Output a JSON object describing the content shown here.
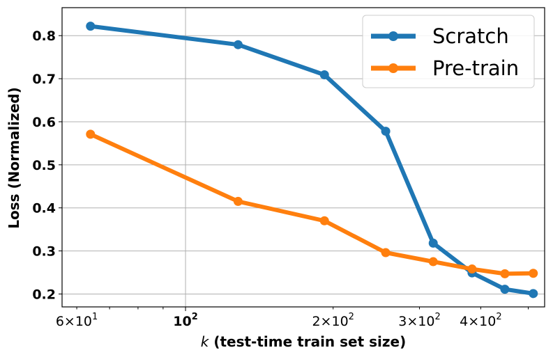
{
  "chart_data": {
    "type": "line",
    "xscale": "log",
    "xlabel_italic": "k",
    "xlabel_rest": "(test-time train set size)",
    "ylabel": "Loss (Normalized)",
    "xlim": [
      56,
      540
    ],
    "ylim": [
      0.17,
      0.865
    ],
    "grid": true,
    "legend_position": "top-right",
    "yticks": [
      "0.2",
      "0.3",
      "0.4",
      "0.5",
      "0.6",
      "0.7",
      "0.8"
    ],
    "xtick_major": {
      "value": 100,
      "base": "10",
      "exp": "2"
    },
    "xtick_minor": [
      {
        "value": 60,
        "mantissa": "6",
        "base": "10",
        "exp": "1"
      },
      {
        "value": 200,
        "mantissa": "2",
        "base": "10",
        "exp": "2"
      },
      {
        "value": 300,
        "mantissa": "3",
        "base": "10",
        "exp": "2"
      },
      {
        "value": 400,
        "mantissa": "4",
        "base": "10",
        "exp": "2"
      }
    ],
    "series": [
      {
        "name": "Scratch",
        "color": "#1f77b4",
        "x": [
          64,
          128,
          192,
          256,
          320,
          384,
          448,
          512
        ],
        "y": [
          0.822,
          0.779,
          0.709,
          0.578,
          0.318,
          0.249,
          0.211,
          0.201
        ]
      },
      {
        "name": "Pre-train",
        "color": "#ff7f0e",
        "x": [
          64,
          128,
          192,
          256,
          320,
          384,
          448,
          512
        ],
        "y": [
          0.571,
          0.415,
          0.37,
          0.296,
          0.275,
          0.258,
          0.247,
          0.248
        ]
      }
    ]
  }
}
